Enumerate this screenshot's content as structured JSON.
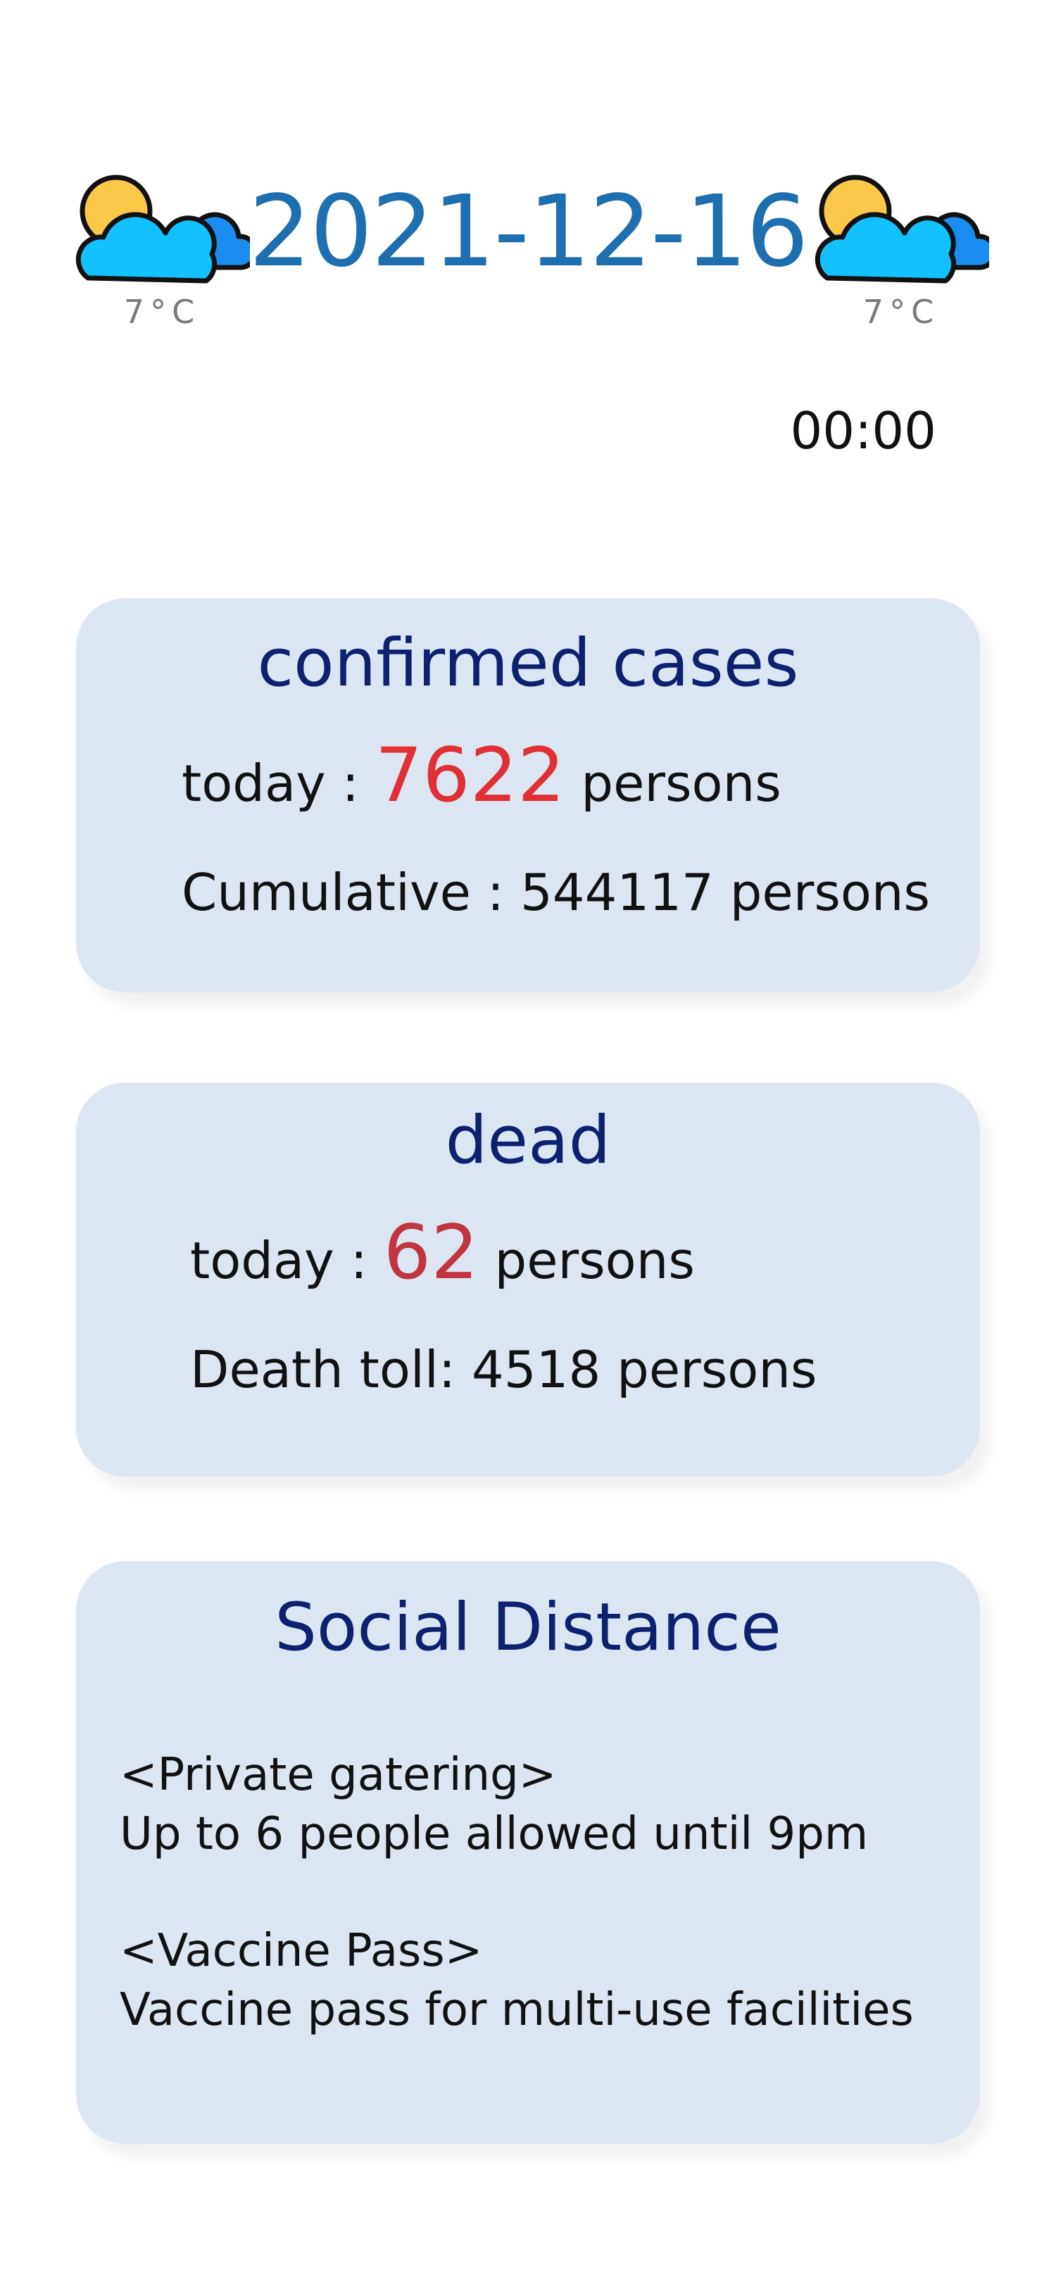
{
  "header": {
    "date": "2021-12-16",
    "weather_left": {
      "icon": "partly-cloudy-icon",
      "temp": "7°C"
    },
    "weather_right": {
      "icon": "partly-cloudy-icon",
      "temp": "7°C"
    },
    "time": "00:00"
  },
  "confirmed": {
    "title": "confirmed cases",
    "today_prefix": "today :",
    "today_value": "7622",
    "today_suffix": "persons",
    "cumulative": "Cumulative : 544117 persons"
  },
  "dead": {
    "title": "dead",
    "today_prefix": "today :",
    "today_value": "62",
    "today_suffix": "persons",
    "toll": "Death toll: 4518 persons"
  },
  "social": {
    "title": "Social Distance",
    "rules": [
      {
        "heading": "<Private gatering>",
        "text": "Up to 6 people allowed until 9pm"
      },
      {
        "heading": "<Vaccine Pass>",
        "text": "Vaccine pass for multi-use facilities"
      }
    ]
  },
  "colors": {
    "date": "#1e6fb0",
    "card_bg": "#dce6f3",
    "title": "#0d2170",
    "confirmed_number": "#e02f35",
    "dead_number": "#c0353f"
  }
}
